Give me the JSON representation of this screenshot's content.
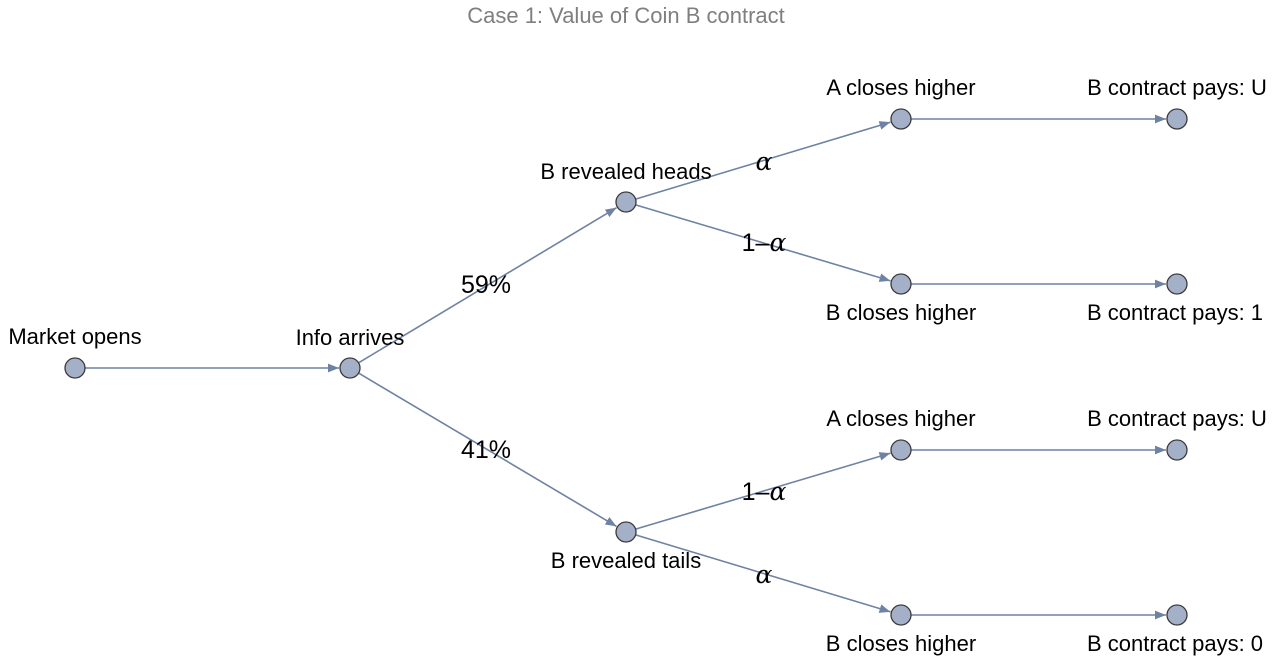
{
  "title": "Case 1: Value of Coin B contract",
  "colors": {
    "edge": "#6e82a3",
    "node_fill": "#a4b0c8",
    "node_stroke": "#3a3a3a",
    "title": "#7f7f7f"
  },
  "nodes": [
    {
      "id": "market-opens",
      "label": "Market opens"
    },
    {
      "id": "info-arrives",
      "label": "Info arrives"
    },
    {
      "id": "b-revealed-heads",
      "label": "B revealed heads"
    },
    {
      "id": "b-revealed-tails",
      "label": "B revealed tails"
    },
    {
      "id": "heads-a-closes-higher",
      "label": "A closes higher"
    },
    {
      "id": "heads-b-closes-higher",
      "label": "B closes higher"
    },
    {
      "id": "tails-a-closes-higher",
      "label": "A closes higher"
    },
    {
      "id": "tails-b-closes-higher",
      "label": "B closes higher"
    },
    {
      "id": "payout-heads-a",
      "label": "B contract pays: U"
    },
    {
      "id": "payout-heads-b",
      "label": "B contract pays: 1"
    },
    {
      "id": "payout-tails-a",
      "label": "B contract pays: U"
    },
    {
      "id": "payout-tails-b",
      "label": "B contract pays: 0"
    }
  ],
  "edges": [
    {
      "from": "market-opens",
      "to": "info-arrives",
      "label": ""
    },
    {
      "from": "info-arrives",
      "to": "b-revealed-heads",
      "label": "59%"
    },
    {
      "from": "info-arrives",
      "to": "b-revealed-tails",
      "label": "41%"
    },
    {
      "from": "b-revealed-heads",
      "to": "heads-a-closes-higher",
      "label": "α"
    },
    {
      "from": "b-revealed-heads",
      "to": "heads-b-closes-higher",
      "label": "1–α"
    },
    {
      "from": "b-revealed-tails",
      "to": "tails-a-closes-higher",
      "label": "1–α"
    },
    {
      "from": "b-revealed-tails",
      "to": "tails-b-closes-higher",
      "label": "α"
    },
    {
      "from": "heads-a-closes-higher",
      "to": "payout-heads-a",
      "label": ""
    },
    {
      "from": "heads-b-closes-higher",
      "to": "payout-heads-b",
      "label": ""
    },
    {
      "from": "tails-a-closes-higher",
      "to": "payout-tails-a",
      "label": ""
    },
    {
      "from": "tails-b-closes-higher",
      "to": "payout-tails-b",
      "label": ""
    }
  ]
}
